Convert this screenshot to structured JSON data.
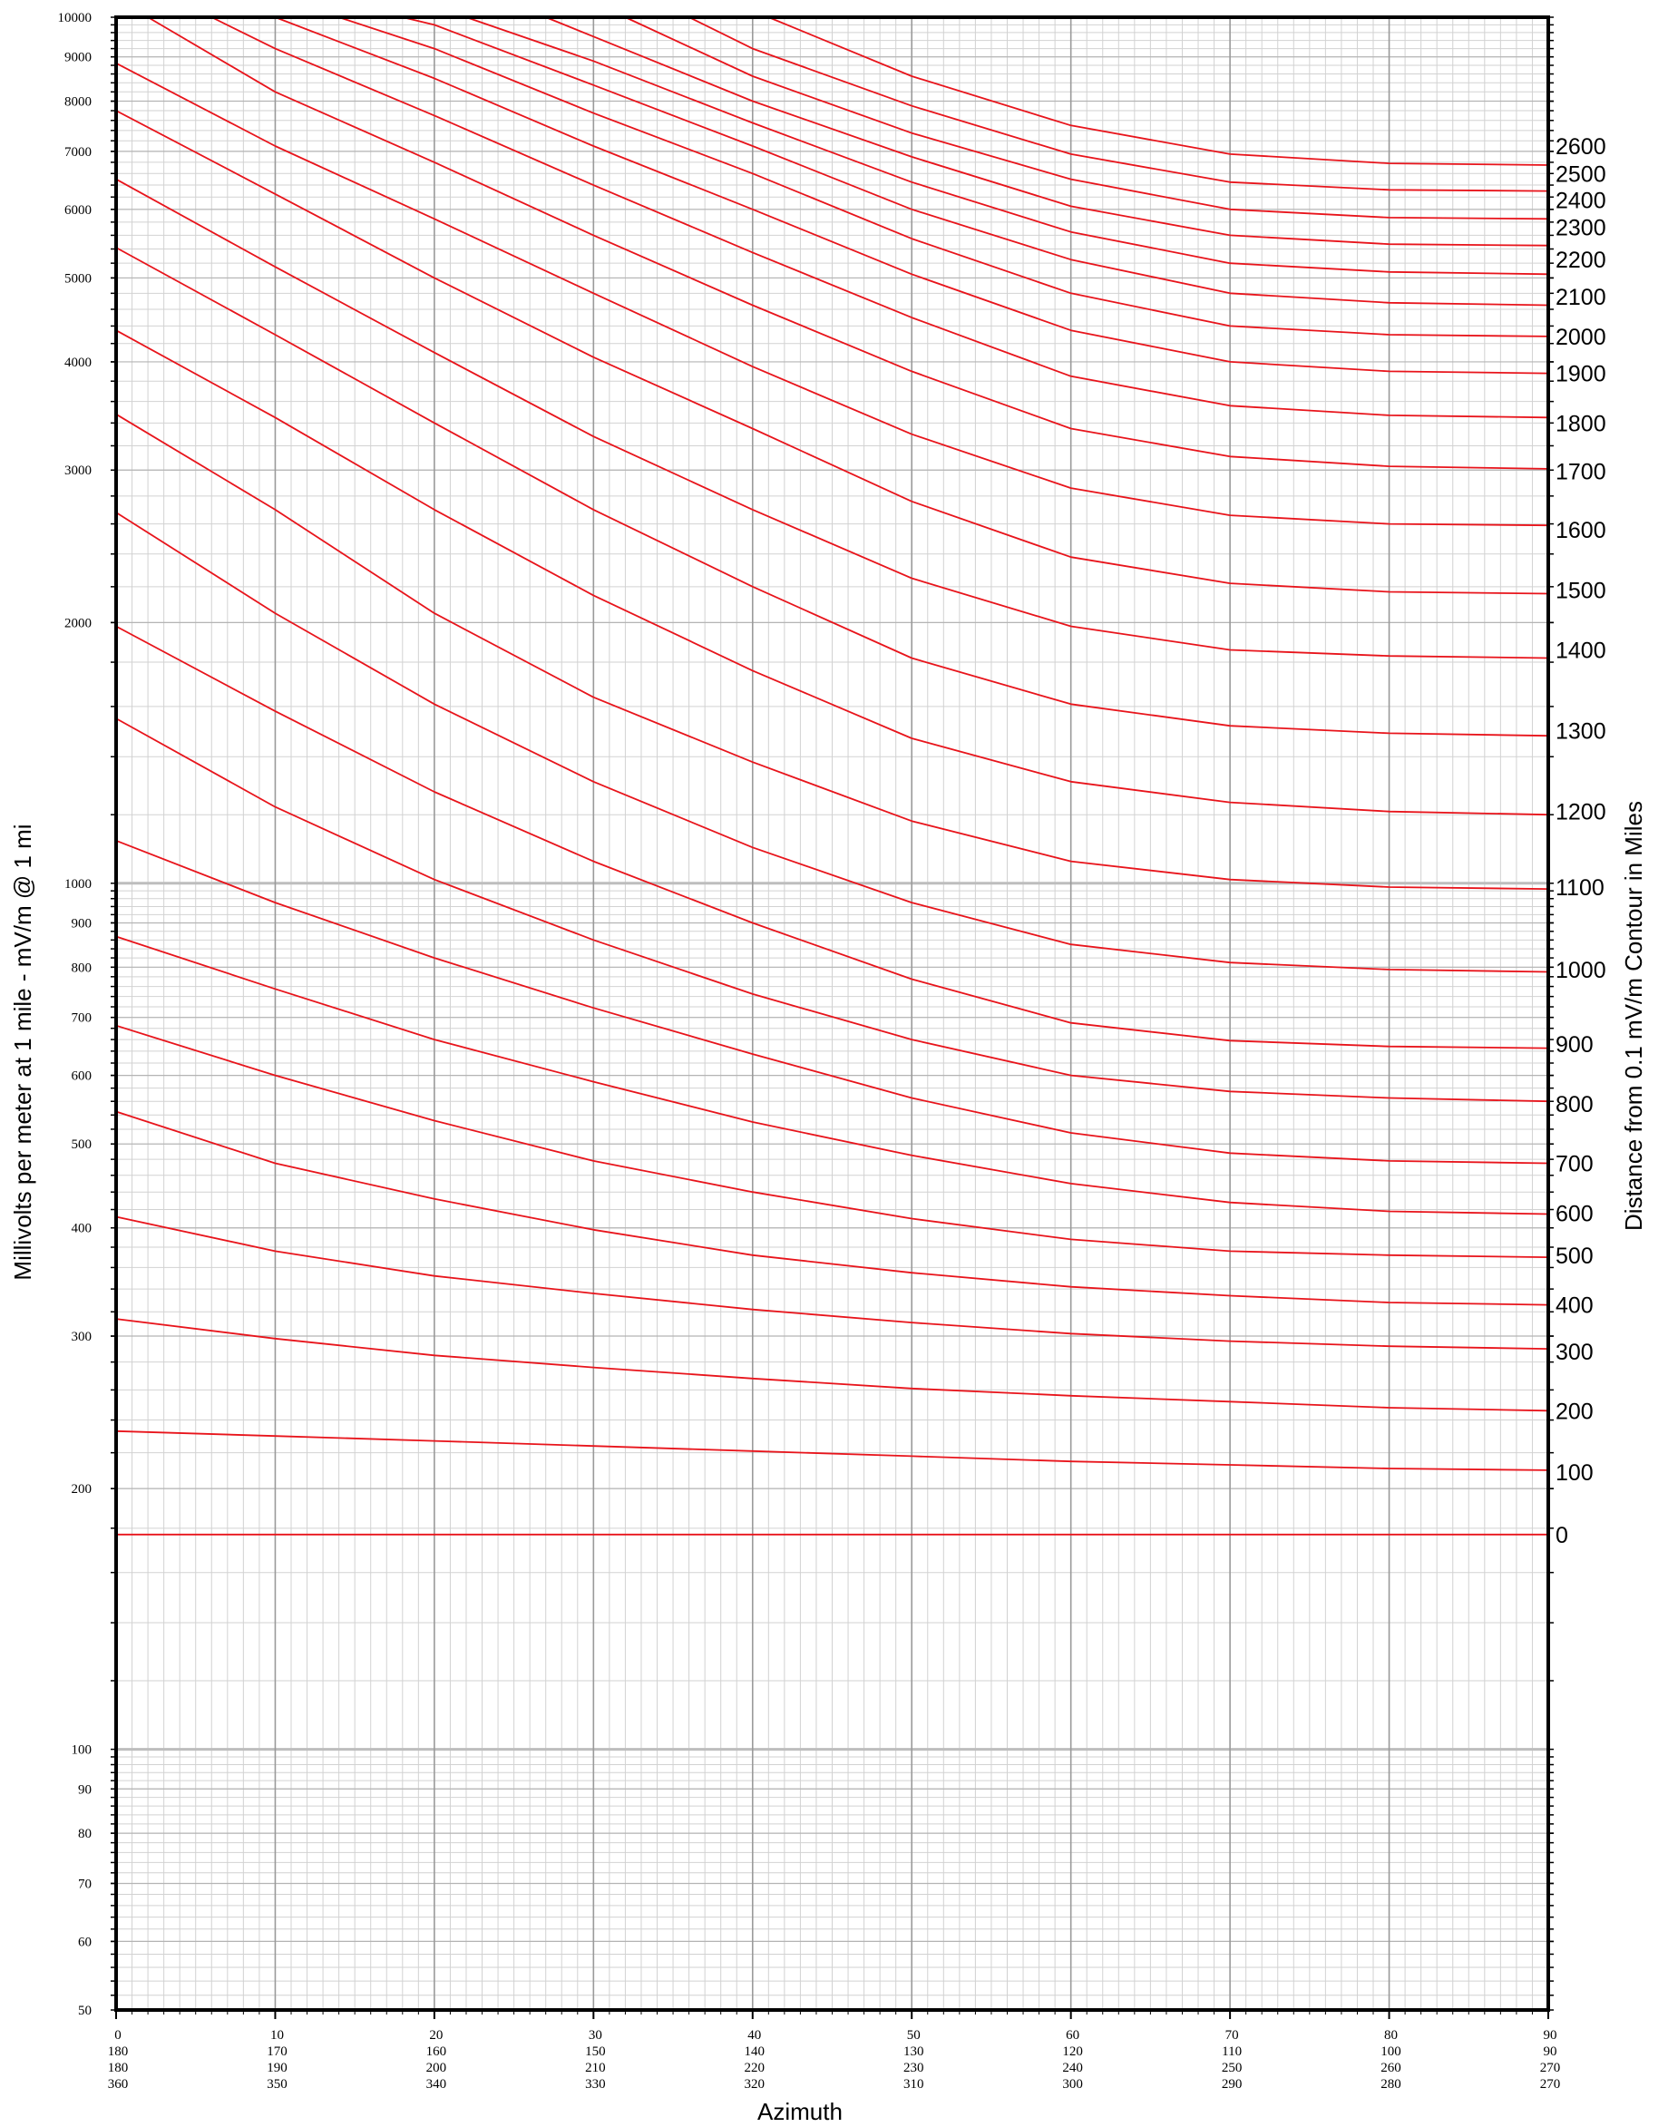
{
  "chart_data": {
    "type": "line",
    "xlabel": "Azimuth",
    "ylabel": "Millivolts per meter at 1 mile - mV/m @ 1 mi",
    "y2label": "Distance from 0.1 mV/m Contour in Miles",
    "x_range": [
      0,
      90
    ],
    "y_range": [
      50,
      10000
    ],
    "y_scale": "log",
    "grid": true,
    "y_tick_labels": [
      "50",
      "60",
      "70",
      "80",
      "90",
      "100",
      "200",
      "300",
      "400",
      "500",
      "600",
      "700",
      "800",
      "900",
      "1000",
      "2000",
      "3000",
      "4000",
      "5000",
      "6000",
      "7000",
      "8000",
      "9000",
      "10000"
    ],
    "x_ticks": [
      0,
      10,
      20,
      30,
      40,
      50,
      60,
      70,
      80,
      90
    ],
    "x_tick_label_rows": [
      [
        "0",
        "10",
        "20",
        "30",
        "40",
        "50",
        "60",
        "70",
        "80",
        "90"
      ],
      [
        "180",
        "170",
        "160",
        "150",
        "140",
        "130",
        "120",
        "110",
        "100",
        "90"
      ],
      [
        "180",
        "190",
        "200",
        "210",
        "220",
        "230",
        "240",
        "250",
        "260",
        "270"
      ],
      [
        "360",
        "350",
        "340",
        "330",
        "320",
        "310",
        "300",
        "290",
        "280",
        "270"
      ]
    ],
    "series": [
      {
        "name": "0",
        "x": [
          0,
          90
        ],
        "y": [
          177,
          177
        ]
      },
      {
        "name": "100",
        "x": [
          0,
          10,
          20,
          30,
          40,
          50,
          60,
          70,
          80,
          90
        ],
        "y": [
          233,
          230,
          227,
          224,
          221,
          218,
          215,
          213,
          211,
          210
        ]
      },
      {
        "name": "200",
        "x": [
          0,
          10,
          20,
          30,
          40,
          50,
          60,
          70,
          80,
          90
        ],
        "y": [
          314,
          298,
          285,
          276,
          268,
          261,
          256,
          252,
          248,
          246
        ]
      },
      {
        "name": "300",
        "x": [
          0,
          10,
          20,
          30,
          40,
          50,
          60,
          70,
          80,
          90
        ],
        "y": [
          412,
          376,
          352,
          336,
          322,
          311,
          302,
          296,
          292,
          290
        ]
      },
      {
        "name": "400",
        "x": [
          0,
          10,
          20,
          30,
          40,
          50,
          60,
          70,
          80,
          90
        ],
        "y": [
          545,
          475,
          432,
          398,
          372,
          355,
          342,
          334,
          328,
          326
        ]
      },
      {
        "name": "500",
        "x": [
          0,
          10,
          20,
          30,
          40,
          50,
          60,
          70,
          80,
          90
        ],
        "y": [
          685,
          600,
          532,
          478,
          440,
          410,
          388,
          376,
          372,
          370
        ]
      },
      {
        "name": "600",
        "x": [
          0,
          10,
          20,
          30,
          40,
          50,
          60,
          70,
          80,
          90
        ],
        "y": [
          868,
          755,
          660,
          590,
          530,
          485,
          450,
          428,
          418,
          415
        ]
      },
      {
        "name": "700",
        "x": [
          0,
          10,
          20,
          30,
          40,
          50,
          60,
          70,
          80,
          90
        ],
        "y": [
          1120,
          950,
          820,
          718,
          635,
          565,
          515,
          488,
          478,
          475
        ]
      },
      {
        "name": "800",
        "x": [
          0,
          10,
          20,
          30,
          40,
          50,
          60,
          70,
          80,
          90
        ],
        "y": [
          1550,
          1225,
          1010,
          860,
          745,
          660,
          600,
          575,
          565,
          560
        ]
      },
      {
        "name": "900",
        "x": [
          0,
          10,
          20,
          30,
          40,
          50,
          60,
          70,
          80,
          90
        ],
        "y": [
          1980,
          1580,
          1275,
          1060,
          900,
          775,
          690,
          658,
          648,
          645
        ]
      },
      {
        "name": "1000",
        "x": [
          0,
          10,
          20,
          30,
          40,
          50,
          60,
          70,
          80,
          90
        ],
        "y": [
          2680,
          2050,
          1610,
          1310,
          1100,
          950,
          850,
          810,
          795,
          790
        ]
      },
      {
        "name": "1100",
        "x": [
          0,
          10,
          20,
          30,
          40,
          50,
          60,
          70,
          80,
          90
        ],
        "y": [
          3480,
          2700,
          2050,
          1640,
          1380,
          1180,
          1060,
          1010,
          990,
          985
        ]
      },
      {
        "name": "1200",
        "x": [
          0,
          10,
          20,
          30,
          40,
          50,
          60,
          70,
          80,
          90
        ],
        "y": [
          4350,
          3450,
          2700,
          2150,
          1760,
          1470,
          1310,
          1240,
          1210,
          1200
        ]
      },
      {
        "name": "1300",
        "x": [
          0,
          10,
          20,
          30,
          40,
          50,
          60,
          70,
          80,
          90
        ],
        "y": [
          5420,
          4300,
          3400,
          2700,
          2200,
          1820,
          1610,
          1520,
          1490,
          1480
        ]
      },
      {
        "name": "1400",
        "x": [
          0,
          10,
          20,
          30,
          40,
          50,
          60,
          70,
          80,
          90
        ],
        "y": [
          6500,
          5150,
          4100,
          3280,
          2700,
          2250,
          1980,
          1860,
          1830,
          1820
        ]
      },
      {
        "name": "1500",
        "x": [
          0,
          10,
          20,
          30,
          40,
          50,
          60,
          70,
          80,
          90
        ],
        "y": [
          7800,
          6250,
          5000,
          4050,
          3350,
          2760,
          2380,
          2220,
          2170,
          2160
        ]
      },
      {
        "name": "1600",
        "x": [
          0,
          10,
          20,
          30,
          40,
          50,
          60,
          70,
          80,
          90
        ],
        "y": [
          8850,
          7100,
          5850,
          4800,
          3950,
          3300,
          2860,
          2660,
          2600,
          2590
        ]
      },
      {
        "name": "1700",
        "x": [
          2,
          10,
          20,
          30,
          40,
          50,
          60,
          70,
          80,
          90
        ],
        "y": [
          10000,
          8200,
          6800,
          5600,
          4650,
          3900,
          3350,
          3110,
          3030,
          3010
        ]
      },
      {
        "name": "1800",
        "x": [
          6,
          10,
          20,
          30,
          40,
          50,
          60,
          70,
          80,
          90
        ],
        "y": [
          10000,
          9200,
          7700,
          6400,
          5350,
          4500,
          3850,
          3560,
          3470,
          3450
        ]
      },
      {
        "name": "1900",
        "x": [
          10,
          20,
          30,
          40,
          50,
          60,
          70,
          80,
          90
        ],
        "y": [
          10000,
          8500,
          7100,
          6000,
          5050,
          4350,
          4000,
          3900,
          3880
        ]
      },
      {
        "name": "2000",
        "x": [
          14,
          20,
          30,
          40,
          50,
          60,
          70,
          80,
          90
        ],
        "y": [
          10000,
          9200,
          7750,
          6600,
          5550,
          4800,
          4400,
          4300,
          4280
        ]
      },
      {
        "name": "2100",
        "x": [
          18,
          20,
          30,
          40,
          50,
          60,
          70,
          80,
          90
        ],
        "y": [
          10000,
          9800,
          8350,
          7100,
          6000,
          5250,
          4800,
          4680,
          4650
        ]
      },
      {
        "name": "2200",
        "x": [
          22,
          30,
          40,
          50,
          60,
          70,
          80,
          90
        ],
        "y": [
          10000,
          8900,
          7550,
          6450,
          5650,
          5200,
          5080,
          5050
        ]
      },
      {
        "name": "2300",
        "x": [
          27,
          30,
          40,
          50,
          60,
          70,
          80,
          90
        ],
        "y": [
          10000,
          9500,
          8000,
          6900,
          6050,
          5600,
          5470,
          5450
        ]
      },
      {
        "name": "2400",
        "x": [
          32,
          40,
          50,
          60,
          70,
          80,
          90
        ],
        "y": [
          10000,
          8550,
          7350,
          6500,
          6000,
          5870,
          5850
        ]
      },
      {
        "name": "2500",
        "x": [
          36,
          40,
          50,
          60,
          70,
          80,
          90
        ],
        "y": [
          10000,
          9200,
          7900,
          6950,
          6450,
          6320,
          6300
        ]
      },
      {
        "name": "2600",
        "x": [
          41,
          50,
          60,
          70,
          80,
          90
        ],
        "y": [
          10000,
          8550,
          7500,
          6950,
          6780,
          6750
        ]
      }
    ],
    "curve_end_labels": [
      {
        "text": "2600",
        "y": 7100
      },
      {
        "text": "2500",
        "y": 6600
      },
      {
        "text": "2400",
        "y": 6150
      },
      {
        "text": "2300",
        "y": 5720
      },
      {
        "text": "2200",
        "y": 5250
      },
      {
        "text": "2100",
        "y": 4760
      },
      {
        "text": "2000",
        "y": 4280
      },
      {
        "text": "1900",
        "y": 3880
      },
      {
        "text": "1800",
        "y": 3400
      },
      {
        "text": "1700",
        "y": 2990
      },
      {
        "text": "1600",
        "y": 2560
      },
      {
        "text": "1500",
        "y": 2180
      },
      {
        "text": "1400",
        "y": 1860
      },
      {
        "text": "1300",
        "y": 1500
      },
      {
        "text": "1200",
        "y": 1210
      },
      {
        "text": "1100",
        "y": 990
      },
      {
        "text": "1000",
        "y": 795
      },
      {
        "text": "900",
        "y": 652
      },
      {
        "text": "800",
        "y": 556
      },
      {
        "text": "700",
        "y": 475
      },
      {
        "text": "600",
        "y": 416
      },
      {
        "text": "500",
        "y": 372
      },
      {
        "text": "400",
        "y": 326
      },
      {
        "text": "300",
        "y": 288
      },
      {
        "text": "200",
        "y": 246
      },
      {
        "text": "100",
        "y": 209
      },
      {
        "text": "0",
        "y": 177
      }
    ],
    "colors": {
      "curve": "#e8141b",
      "grid_minor": "#d2d2d2",
      "grid_major": "#9a9a9a",
      "grid_decade": "#bdbdbd",
      "axis": "#000000"
    }
  }
}
